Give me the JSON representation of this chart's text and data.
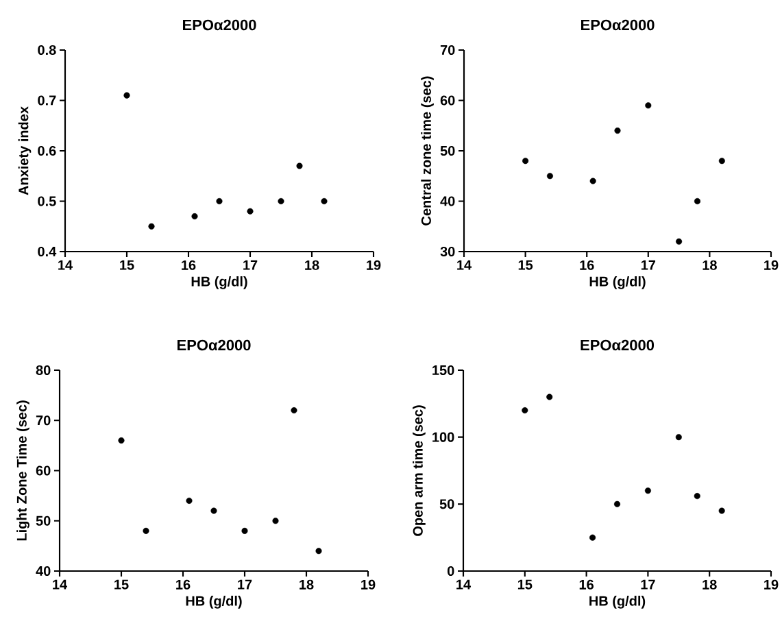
{
  "chart_data": [
    {
      "type": "scatter",
      "title": "EPOα2000",
      "xlabel": "HB (g/dl)",
      "ylabel": "Anxiety index",
      "x": [
        15,
        15.4,
        16.1,
        16.5,
        17,
        17.5,
        17.8,
        18.2
      ],
      "values": [
        0.71,
        0.45,
        0.47,
        0.5,
        0.48,
        0.5,
        0.57,
        0.5
      ],
      "color": "#000000",
      "marker": "circle",
      "xlim": [
        14,
        19
      ],
      "ylim": [
        0.4,
        0.8
      ],
      "xticks": [
        14,
        15,
        16,
        17,
        18,
        19
      ],
      "yticks": [
        0.4,
        0.5,
        0.6,
        0.7,
        0.8
      ]
    },
    {
      "type": "scatter",
      "title": "EPOα2000",
      "xlabel": "HB (g/dl)",
      "ylabel": "Central zone time (sec)",
      "x": [
        15,
        15.4,
        16.1,
        16.5,
        17,
        17.5,
        17.8,
        18.2
      ],
      "values": [
        48,
        45,
        44,
        54,
        59,
        32,
        40,
        48
      ],
      "color": "#000000",
      "marker": "circle",
      "xlim": [
        14,
        19
      ],
      "ylim": [
        30,
        70
      ],
      "xticks": [
        14,
        15,
        16,
        17,
        18,
        19
      ],
      "yticks": [
        30,
        40,
        50,
        60,
        70
      ]
    },
    {
      "type": "scatter",
      "title": "EPOα2000",
      "xlabel": "HB (g/dl)",
      "ylabel": "Light Zone Time (sec)",
      "x": [
        15,
        15.4,
        16.1,
        16.5,
        17,
        17.5,
        17.8,
        18.2
      ],
      "values": [
        66,
        48,
        54,
        52,
        48,
        50,
        72,
        44
      ],
      "color": "#000000",
      "marker": "circle",
      "xlim": [
        14,
        19
      ],
      "ylim": [
        40,
        80
      ],
      "xticks": [
        14,
        15,
        16,
        17,
        18,
        19
      ],
      "yticks": [
        40,
        50,
        60,
        70,
        80
      ]
    },
    {
      "type": "scatter",
      "title": "EPOα2000",
      "xlabel": "HB (g/dl)",
      "ylabel": "Open arm time (sec)",
      "x": [
        15,
        15.4,
        16.1,
        16.5,
        17,
        17.5,
        17.8,
        18.2
      ],
      "values": [
        120,
        130,
        25,
        50,
        60,
        100,
        56,
        45
      ],
      "color": "#000000",
      "marker": "circle",
      "xlim": [
        14,
        19
      ],
      "ylim": [
        0,
        150
      ],
      "xticks": [
        14,
        15,
        16,
        17,
        18,
        19
      ],
      "yticks": [
        0,
        50,
        100,
        150
      ]
    }
  ]
}
